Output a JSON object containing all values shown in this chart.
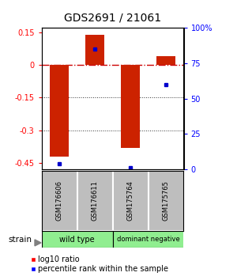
{
  "title": "GDS2691 / 21061",
  "samples": [
    "GSM176606",
    "GSM176611",
    "GSM175764",
    "GSM175765"
  ],
  "log10_ratios": [
    -0.42,
    0.14,
    -0.38,
    0.04
  ],
  "percentile_ranks": [
    4,
    85,
    1,
    60
  ],
  "ylim_left": [
    -0.48,
    0.17
  ],
  "left_ticks": [
    0.15,
    0,
    -0.15,
    -0.3,
    -0.45
  ],
  "right_ticks": [
    100,
    75,
    50,
    25,
    0
  ],
  "right_tick_labels": [
    "100%",
    "75",
    "50",
    "25",
    "0"
  ],
  "bar_color": "#CC2200",
  "dot_color": "#0000CC",
  "sample_box_color": "#BEBEBE",
  "zero_line_color": "#CC0000",
  "dotted_line_color": "#333333",
  "group_colors": [
    "#90EE90",
    "#90EE90"
  ],
  "title_fontsize": 10,
  "tick_fontsize": 7,
  "legend_fontsize": 7
}
